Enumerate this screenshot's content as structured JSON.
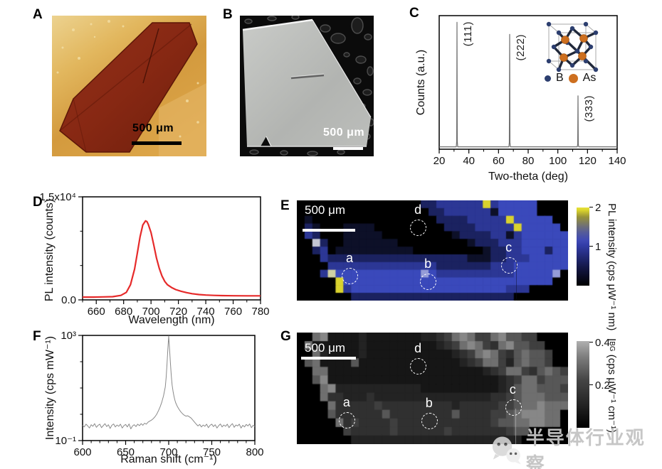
{
  "panels": {
    "a": {
      "label": "A",
      "scalebar_text": "500 μm"
    },
    "b": {
      "label": "B",
      "scalebar_text": "500 μm"
    },
    "c": {
      "label": "C",
      "legend_b": "B",
      "legend_as": "As"
    },
    "d": {
      "label": "D"
    },
    "e": {
      "label": "E",
      "scalebar_text": "500 μm",
      "colorbar_label": "PL intensity (cps μW⁻¹ nm)",
      "colorbar_ticks": [
        "1",
        "2"
      ]
    },
    "f": {
      "label": "F"
    },
    "g": {
      "label": "G",
      "scalebar_text": "500 μm",
      "colorbar_prefix": "I",
      "colorbar_sub": "BG",
      "colorbar_units": " (cps μW⁻¹ cm⁻¹)",
      "colorbar_ticks": [
        "0.2",
        "0.4"
      ]
    }
  },
  "watermark": {
    "text": "半导体行业观察"
  },
  "chart_data": [
    {
      "id": "xrd",
      "type": "line",
      "panel": "C",
      "title": "",
      "xlabel": "Two-theta (deg)",
      "ylabel": "Counts (a.u.)",
      "xlim": [
        20,
        140
      ],
      "ylim": [
        0,
        1
      ],
      "yscale": "linear",
      "color": "#6e6e6e",
      "line_width": 1.2,
      "xticks": [
        {
          "v": 20,
          "label": "20"
        },
        {
          "v": 40,
          "label": "40"
        },
        {
          "v": 60,
          "label": "60"
        },
        {
          "v": 80,
          "label": "80"
        },
        {
          "v": 100,
          "label": "100"
        },
        {
          "v": 120,
          "label": "120"
        },
        {
          "v": 140,
          "label": "140"
        }
      ],
      "xminor": [
        30,
        50,
        70,
        90,
        110,
        130
      ],
      "yticks": [],
      "yminor": [],
      "annotations": [
        {
          "text": "(111)",
          "x": 32,
          "dy": 8
        },
        {
          "text": "(222)",
          "x": 67.5,
          "dy": 26
        },
        {
          "text": "(333)",
          "x": 113.6,
          "dy": 112
        }
      ],
      "points": [
        [
          20,
          0.018
        ],
        [
          31.5,
          0.018
        ],
        [
          31.8,
          0.06
        ],
        [
          32,
          0.95
        ],
        [
          32.2,
          0.06
        ],
        [
          32.5,
          0.018
        ],
        [
          67,
          0.018
        ],
        [
          67.3,
          0.05
        ],
        [
          67.5,
          0.86
        ],
        [
          67.7,
          0.05
        ],
        [
          68,
          0.018
        ],
        [
          113.1,
          0.018
        ],
        [
          113.4,
          0.04
        ],
        [
          113.6,
          0.4
        ],
        [
          113.8,
          0.04
        ],
        [
          114.1,
          0.018
        ],
        [
          140,
          0.018
        ]
      ]
    },
    {
      "id": "pl_spectrum",
      "type": "line",
      "panel": "D",
      "title": "",
      "xlabel": "Wavelength (nm)",
      "ylabel": "PL intensity (counts)",
      "xlim": [
        650,
        780
      ],
      "ylim": [
        0,
        15000
      ],
      "yscale": "linear",
      "color": "#e62a2a",
      "line_width": 2.2,
      "xticks": [
        {
          "v": 660,
          "label": "660"
        },
        {
          "v": 680,
          "label": "680"
        },
        {
          "v": 700,
          "label": "700"
        },
        {
          "v": 720,
          "label": "720"
        },
        {
          "v": 740,
          "label": "740"
        },
        {
          "v": 760,
          "label": "760"
        },
        {
          "v": 780,
          "label": "780"
        }
      ],
      "xminor": [
        650,
        670,
        690,
        710,
        730,
        750,
        770
      ],
      "yticks": [
        {
          "v": 0,
          "label": "0.0"
        },
        {
          "v": 15000,
          "label": "1.5x10⁴"
        }
      ],
      "yminor": [
        5000,
        10000
      ],
      "annotations": [],
      "points": [
        [
          650,
          400
        ],
        [
          658,
          400
        ],
        [
          665,
          430
        ],
        [
          672,
          470
        ],
        [
          678,
          650
        ],
        [
          682,
          1100
        ],
        [
          685,
          2200
        ],
        [
          688,
          4500
        ],
        [
          690,
          6800
        ],
        [
          692,
          9200
        ],
        [
          694,
          10900
        ],
        [
          696,
          11500
        ],
        [
          697,
          11400
        ],
        [
          698,
          11000
        ],
        [
          700,
          9800
        ],
        [
          702,
          8000
        ],
        [
          704,
          6100
        ],
        [
          706,
          4600
        ],
        [
          708,
          3500
        ],
        [
          710,
          2700
        ],
        [
          712,
          2200
        ],
        [
          715,
          1800
        ],
        [
          718,
          1500
        ],
        [
          722,
          1250
        ],
        [
          726,
          1050
        ],
        [
          730,
          900
        ],
        [
          735,
          780
        ],
        [
          740,
          700
        ],
        [
          746,
          650
        ],
        [
          752,
          620
        ],
        [
          760,
          600
        ],
        [
          770,
          590
        ],
        [
          780,
          590
        ]
      ]
    },
    {
      "id": "raman",
      "type": "line",
      "panel": "F",
      "title": "",
      "xlabel": "Raman shift (cm⁻¹)",
      "ylabel": "Intensity (cps mW⁻¹)",
      "xlim": [
        600,
        800
      ],
      "ylim": [
        0.1,
        1000
      ],
      "yscale": "log",
      "color": "#8a8a8a",
      "line_width": 1,
      "xticks": [
        {
          "v": 600,
          "label": "600"
        },
        {
          "v": 650,
          "label": "650"
        },
        {
          "v": 700,
          "label": "700"
        },
        {
          "v": 750,
          "label": "750"
        },
        {
          "v": 800,
          "label": "800"
        }
      ],
      "xminor": [
        610,
        620,
        630,
        640,
        660,
        670,
        680,
        690,
        710,
        720,
        730,
        740,
        760,
        770,
        780,
        790
      ],
      "yticks": [
        {
          "v": 0.1,
          "label": "10⁻¹"
        },
        {
          "v": 1000,
          "label": "10³"
        }
      ],
      "yminor": [
        1,
        10,
        100
      ],
      "annotations": [],
      "points": [
        [
          600,
          0.38
        ],
        [
          602,
          0.33
        ],
        [
          604,
          0.42
        ],
        [
          606,
          0.36
        ],
        [
          608,
          0.3
        ],
        [
          610,
          0.4
        ],
        [
          612,
          0.35
        ],
        [
          614,
          0.44
        ],
        [
          616,
          0.32
        ],
        [
          618,
          0.38
        ],
        [
          620,
          0.42
        ],
        [
          622,
          0.31
        ],
        [
          624,
          0.37
        ],
        [
          626,
          0.44
        ],
        [
          628,
          0.34
        ],
        [
          630,
          0.4
        ],
        [
          632,
          0.29
        ],
        [
          634,
          0.38
        ],
        [
          636,
          0.43
        ],
        [
          638,
          0.33
        ],
        [
          640,
          0.39
        ],
        [
          642,
          0.35
        ],
        [
          644,
          0.42
        ],
        [
          646,
          0.3
        ],
        [
          648,
          0.37
        ],
        [
          650,
          0.41
        ],
        [
          652,
          0.33
        ],
        [
          654,
          0.43
        ],
        [
          656,
          0.28
        ],
        [
          658,
          0.36
        ],
        [
          660,
          0.4
        ],
        [
          662,
          0.34
        ],
        [
          664,
          0.42
        ],
        [
          666,
          0.37
        ],
        [
          668,
          0.44
        ],
        [
          670,
          0.38
        ],
        [
          672,
          0.46
        ],
        [
          674,
          0.42
        ],
        [
          676,
          0.5
        ],
        [
          678,
          0.55
        ],
        [
          680,
          0.6
        ],
        [
          682,
          0.68
        ],
        [
          684,
          0.8
        ],
        [
          686,
          1.0
        ],
        [
          688,
          1.35
        ],
        [
          690,
          1.9
        ],
        [
          692,
          2.9
        ],
        [
          694,
          5.0
        ],
        [
          696,
          11
        ],
        [
          697,
          25
        ],
        [
          698,
          80
        ],
        [
          699,
          300
        ],
        [
          700,
          950
        ],
        [
          701,
          300
        ],
        [
          702,
          90
        ],
        [
          703,
          30
        ],
        [
          704,
          13
        ],
        [
          705,
          7.5
        ],
        [
          706,
          5.0
        ],
        [
          707,
          3.6
        ],
        [
          708,
          2.8
        ],
        [
          710,
          2.0
        ],
        [
          712,
          1.55
        ],
        [
          714,
          1.25
        ],
        [
          716,
          1.05
        ],
        [
          718,
          0.92
        ],
        [
          720,
          0.85
        ],
        [
          722,
          0.88
        ],
        [
          724,
          0.8
        ],
        [
          726,
          0.72
        ],
        [
          728,
          0.6
        ],
        [
          730,
          0.5
        ],
        [
          732,
          0.42
        ],
        [
          734,
          0.36
        ],
        [
          736,
          0.41
        ],
        [
          738,
          0.33
        ],
        [
          740,
          0.39
        ],
        [
          742,
          0.35
        ],
        [
          744,
          0.42
        ],
        [
          746,
          0.31
        ],
        [
          748,
          0.38
        ],
        [
          750,
          0.42
        ],
        [
          752,
          0.34
        ],
        [
          754,
          0.4
        ],
        [
          756,
          0.3
        ],
        [
          758,
          0.37
        ],
        [
          760,
          0.43
        ],
        [
          762,
          0.33
        ],
        [
          764,
          0.39
        ],
        [
          766,
          0.35
        ],
        [
          768,
          0.42
        ],
        [
          770,
          0.31
        ],
        [
          772,
          0.38
        ],
        [
          774,
          0.44
        ],
        [
          776,
          0.32
        ],
        [
          778,
          0.39
        ],
        [
          780,
          0.36
        ],
        [
          782,
          0.42
        ],
        [
          784,
          0.3
        ],
        [
          786,
          0.38
        ],
        [
          788,
          0.33
        ],
        [
          790,
          0.41
        ],
        [
          792,
          0.36
        ],
        [
          794,
          0.43
        ],
        [
          796,
          0.31
        ],
        [
          798,
          0.38
        ],
        [
          800,
          0.35
        ]
      ]
    },
    {
      "id": "pl_map",
      "type": "heatmap",
      "panel": "E",
      "value_label": "PL intensity (cps μW⁻¹ nm)",
      "value_range": [
        0,
        2
      ],
      "colorbar_tick_values": [
        1,
        2
      ],
      "cols": 35,
      "rows": 13,
      "palette": {
        ".": "#000000",
        "1": "#0d1028",
        "2": "#1b2260",
        "3": "#2c3795",
        "4": "#3a49bb",
        "5": "#5563cc",
        "W": "#c4c7d4",
        "L": "#959cd8",
        "Y": "#d9d22e",
        "P": "#cfd0a4"
      },
      "grid": [
        "................22333333Y344444....",
        ".................223333331444 44...",
        ".1................222233333Y44444..",
        ".21...1111.........222233333Y44444.",
        ".32...11111.........122223313444444",
        "..W2..1111111.........1222333444444",
        "..23.1111111111.........12233444244",
        "...32222222222222222221112233344 4444",
        "....33333333333333222222233344 44444.",
        "...3P44444444444L4333333333344 444L.",
        ".....Y444444444444444444444444444..",
        ".....Y344444444444444444444333.....",
        ".......222222222222222222222......."
      ],
      "points": [
        {
          "label": "a",
          "fx": 0.197,
          "fy": 0.76
        },
        {
          "label": "b",
          "fx": 0.486,
          "fy": 0.815
        },
        {
          "label": "c",
          "fx": 0.785,
          "fy": 0.652
        },
        {
          "label": "d",
          "fx": 0.449,
          "fy": 0.277
        }
      ],
      "vline": {
        "fx": 0.808,
        "fy0": 0.6,
        "fy1": 1,
        "color": "rgba(10,10,30,0.45)"
      }
    },
    {
      "id": "ibg_map",
      "type": "heatmap",
      "panel": "G",
      "value_label": "IBG (cps μW⁻¹ cm⁻¹)",
      "value_range": [
        0,
        0.4
      ],
      "colorbar_tick_values": [
        0.2,
        0.4
      ],
      "cols": 35,
      "rows": 13,
      "palette": {
        ".": "#000000",
        "1": "#161616",
        "2": "#232323",
        "3": "#303030",
        "4": "#3f3f3f",
        "5": "#575757",
        "6": "#6f6f6f",
        "7": "#878787",
        "8": "#9f9f9f"
      },
      "grid": [
        "..67111121111111223467644675544....",
        ".6111111211111111123467643675544...",
        "..6211112111111111112346764356554..",
        ".5611115111111111111123466425655 4.",
        "..661111111111111111111123466435654",
        "..5711111111111111111111112346645 55",
        "...672222222222211111111112356655 54",
        "...633222322222222222222233456665 55",
        "....633333433333333323333344566766 65",
        "....533333353333333353333445677766",
        ".....63433334333333333333455667766.",
        "......433333433333343333333455.....",
        ".......2222222222222222222222......"
      ],
      "points": [
        {
          "label": "a",
          "fx": 0.186,
          "fy": 0.79
        },
        {
          "label": "b",
          "fx": 0.49,
          "fy": 0.796
        },
        {
          "label": "c",
          "fx": 0.8,
          "fy": 0.675
        },
        {
          "label": "d",
          "fx": 0.449,
          "fy": 0.306
        }
      ],
      "vline": {
        "fx": 0.806,
        "fy0": 0.68,
        "fy1": 1,
        "color": "rgba(200,200,200,0.5)"
      }
    }
  ]
}
